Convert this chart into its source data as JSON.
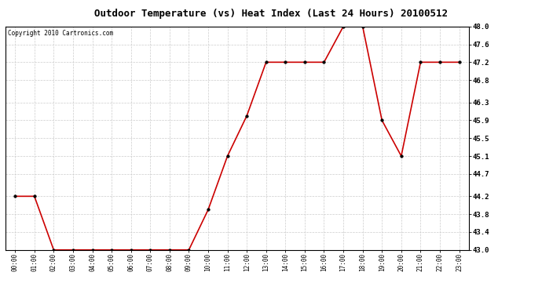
{
  "title": "Outdoor Temperature (vs) Heat Index (Last 24 Hours) 20100512",
  "copyright": "Copyright 2010 Cartronics.com",
  "x_labels": [
    "00:00",
    "01:00",
    "02:00",
    "03:00",
    "04:00",
    "05:00",
    "06:00",
    "07:00",
    "08:00",
    "09:00",
    "10:00",
    "11:00",
    "12:00",
    "13:00",
    "14:00",
    "15:00",
    "16:00",
    "17:00",
    "18:00",
    "19:00",
    "20:00",
    "21:00",
    "22:00",
    "23:00"
  ],
  "y_values": [
    44.2,
    44.2,
    43.0,
    43.0,
    43.0,
    43.0,
    43.0,
    43.0,
    43.0,
    43.0,
    43.9,
    45.1,
    46.0,
    47.2,
    47.2,
    47.2,
    47.2,
    48.0,
    48.0,
    45.9,
    45.1,
    47.2,
    47.2,
    47.2
  ],
  "line_color": "#cc0000",
  "marker_color": "#000000",
  "bg_color": "#ffffff",
  "plot_bg_color": "#ffffff",
  "grid_color": "#cccccc",
  "ylim_min": 43.0,
  "ylim_max": 48.0,
  "yticks": [
    43.0,
    43.4,
    43.8,
    44.2,
    44.7,
    45.1,
    45.5,
    45.9,
    46.3,
    46.8,
    47.2,
    47.6,
    48.0
  ],
  "title_fontsize": 9,
  "copyright_fontsize": 5.5,
  "xtick_fontsize": 5.5,
  "ytick_fontsize": 6.5,
  "line_width": 1.2,
  "marker_size": 2.5
}
